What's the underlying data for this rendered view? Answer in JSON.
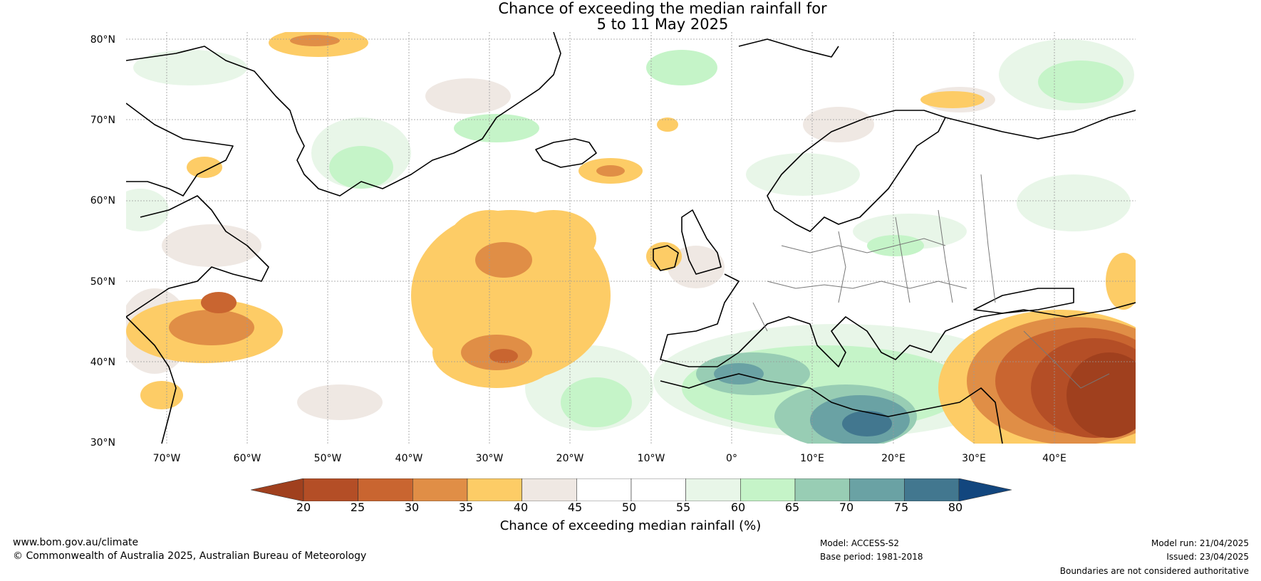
{
  "title": {
    "line1": "Chance of exceeding the median rainfall for",
    "line2": "5 to 11 May 2025"
  },
  "map": {
    "lat_labels": [
      "80°N",
      "70°N",
      "60°N",
      "50°N",
      "40°N",
      "30°N"
    ],
    "lon_labels": [
      "70°W",
      "60°W",
      "50°W",
      "40°W",
      "30°W",
      "20°W",
      "10°W",
      "0°",
      "10°E",
      "20°E",
      "30°E",
      "40°E"
    ],
    "extent": {
      "lon_min": -75,
      "lon_max": 50,
      "lat_min": 30,
      "lat_max": 81
    },
    "grid": true
  },
  "colorbar": {
    "ticks": [
      "20",
      "25",
      "30",
      "35",
      "40",
      "45",
      "50",
      "55",
      "60",
      "65",
      "70",
      "75",
      "80"
    ],
    "colors": [
      "#a0401e",
      "#b44e26",
      "#c96530",
      "#e08e46",
      "#fdcc66",
      "#efe8e3",
      "#ffffff",
      "#ffffff",
      "#e8f6e8",
      "#c5f4c8",
      "#98cdb4",
      "#6aa2a4",
      "#42778f",
      "#12467e"
    ],
    "label": "Chance of exceeding median rainfall (%)"
  },
  "footer": {
    "url": "www.bom.gov.au/climate",
    "copyright": "© Commonwealth of Australia 2025, Australian Bureau of Meteorology",
    "model": "Model: ACCESS-S2",
    "base_period": "Base period: 1981-2018",
    "model_run": "Model run: 21/04/2025",
    "issued": "Issued: 23/04/2025",
    "disclaimer": "Boundaries are not considered authoritative"
  }
}
